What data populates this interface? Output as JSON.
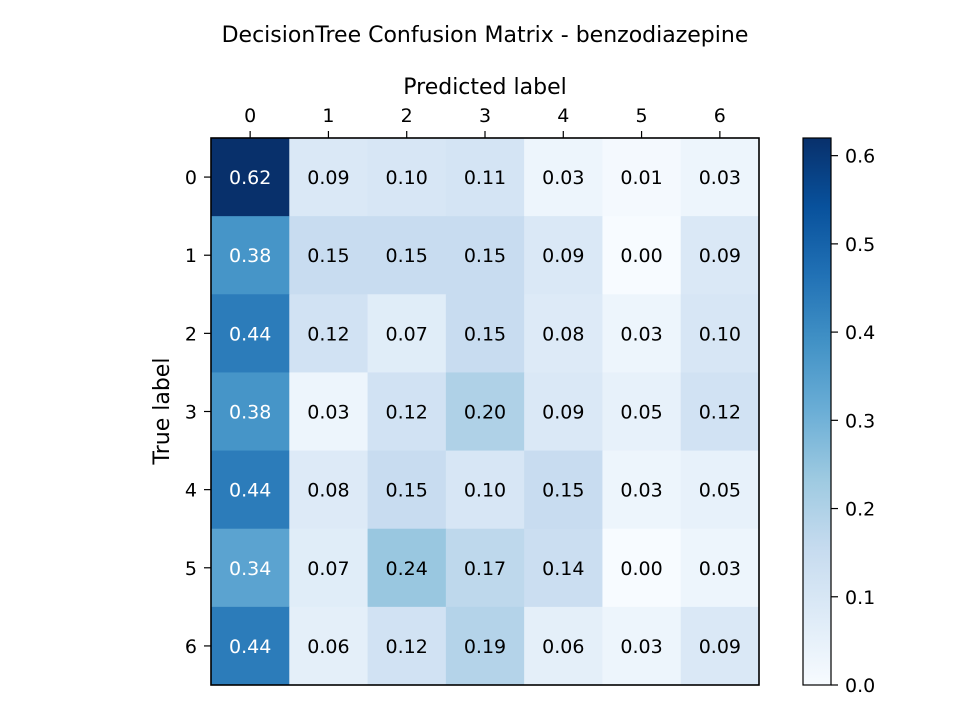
{
  "chart_data": {
    "type": "heatmap",
    "title": "DecisionTree Confusion Matrix - benzodiazepine",
    "xlabel": "Predicted label",
    "ylabel": "True label",
    "x_categories": [
      "0",
      "1",
      "2",
      "3",
      "4",
      "5",
      "6"
    ],
    "y_categories": [
      "0",
      "1",
      "2",
      "3",
      "4",
      "5",
      "6"
    ],
    "values": [
      [
        0.62,
        0.09,
        0.1,
        0.11,
        0.03,
        0.01,
        0.03
      ],
      [
        0.38,
        0.15,
        0.15,
        0.15,
        0.09,
        0.0,
        0.09
      ],
      [
        0.44,
        0.12,
        0.07,
        0.15,
        0.08,
        0.03,
        0.1
      ],
      [
        0.38,
        0.03,
        0.12,
        0.2,
        0.09,
        0.05,
        0.12
      ],
      [
        0.44,
        0.08,
        0.15,
        0.1,
        0.15,
        0.03,
        0.05
      ],
      [
        0.34,
        0.07,
        0.24,
        0.17,
        0.14,
        0.0,
        0.03
      ],
      [
        0.44,
        0.06,
        0.12,
        0.19,
        0.06,
        0.03,
        0.09
      ]
    ],
    "colormap": "Blues",
    "vmin": 0.0,
    "vmax": 0.62,
    "colorbar_ticks": [
      "0.0",
      "0.1",
      "0.2",
      "0.3",
      "0.4",
      "0.5",
      "0.6"
    ],
    "x_tick_position": "top",
    "grid": false
  }
}
